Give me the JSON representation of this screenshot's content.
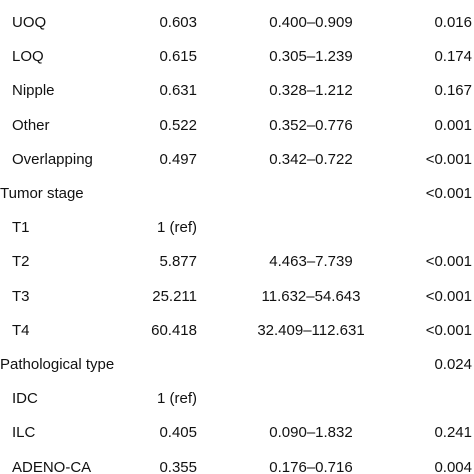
{
  "table": {
    "groups": [
      {
        "rows": [
          {
            "label": "UOQ",
            "or": "0.603",
            "ci": "0.400–0.909",
            "p": "0.016"
          },
          {
            "label": "LOQ",
            "or": "0.615",
            "ci": "0.305–1.239",
            "p": "0.174"
          },
          {
            "label": "Nipple",
            "or": "0.631",
            "ci": "0.328–1.212",
            "p": "0.167"
          },
          {
            "label": "Other",
            "or": "0.522",
            "ci": "0.352–0.776",
            "p": "0.001"
          },
          {
            "label": "Overlapping",
            "or": "0.497",
            "ci": "0.342–0.722",
            "p": "<0.001"
          }
        ]
      },
      {
        "title": "Tumor stage",
        "p": "<0.001",
        "rows": [
          {
            "label": "T1",
            "or": "1 (ref)"
          },
          {
            "label": "T2",
            "or": "5.877",
            "ci": "4.463–7.739",
            "p": "<0.001"
          },
          {
            "label": "T3",
            "or": "25.211",
            "ci": "11.632–54.643",
            "p": "<0.001"
          },
          {
            "label": "T4",
            "or": "60.418",
            "ci": "32.409–112.631",
            "p": "<0.001"
          }
        ]
      },
      {
        "title": "Pathological type",
        "p": "0.024",
        "rows": [
          {
            "label": "IDC",
            "or": "1 (ref)"
          },
          {
            "label": "ILC",
            "or": "0.405",
            "ci": "0.090–1.832",
            "p": "0.241"
          },
          {
            "label": "ADENO-CA",
            "or": "0.355",
            "ci": "0.176–0.716",
            "p": "0.004"
          }
        ]
      }
    ]
  }
}
